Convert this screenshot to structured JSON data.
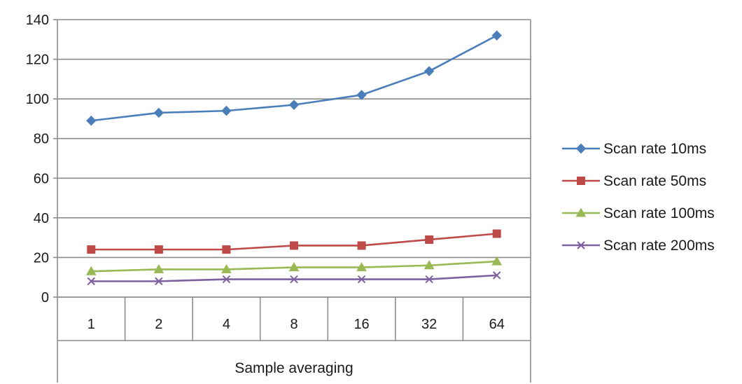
{
  "chart_data": {
    "type": "line",
    "categories": [
      "1",
      "2",
      "4",
      "8",
      "16",
      "32",
      "64"
    ],
    "xlabel": "Sample averaging",
    "ylabel": "",
    "ylim": [
      0,
      140
    ],
    "yticks": [
      0,
      20,
      40,
      60,
      80,
      100,
      120,
      140
    ],
    "grid": true,
    "legend_position": "right",
    "series": [
      {
        "name": "Scan rate 10ms",
        "color": "#4a7ebb",
        "marker": "diamond",
        "values": [
          89,
          93,
          94,
          97,
          102,
          114,
          132
        ]
      },
      {
        "name": "Scan rate 50ms",
        "color": "#be4b48",
        "marker": "square",
        "values": [
          24,
          24,
          24,
          26,
          26,
          29,
          32
        ]
      },
      {
        "name": "Scan rate 100ms",
        "color": "#98b954",
        "marker": "triangle",
        "values": [
          13,
          14,
          14,
          15,
          15,
          16,
          18
        ]
      },
      {
        "name": "Scan rate 200ms",
        "color": "#7d60a0",
        "marker": "x",
        "values": [
          8,
          8,
          9,
          9,
          9,
          9,
          11
        ]
      }
    ]
  }
}
